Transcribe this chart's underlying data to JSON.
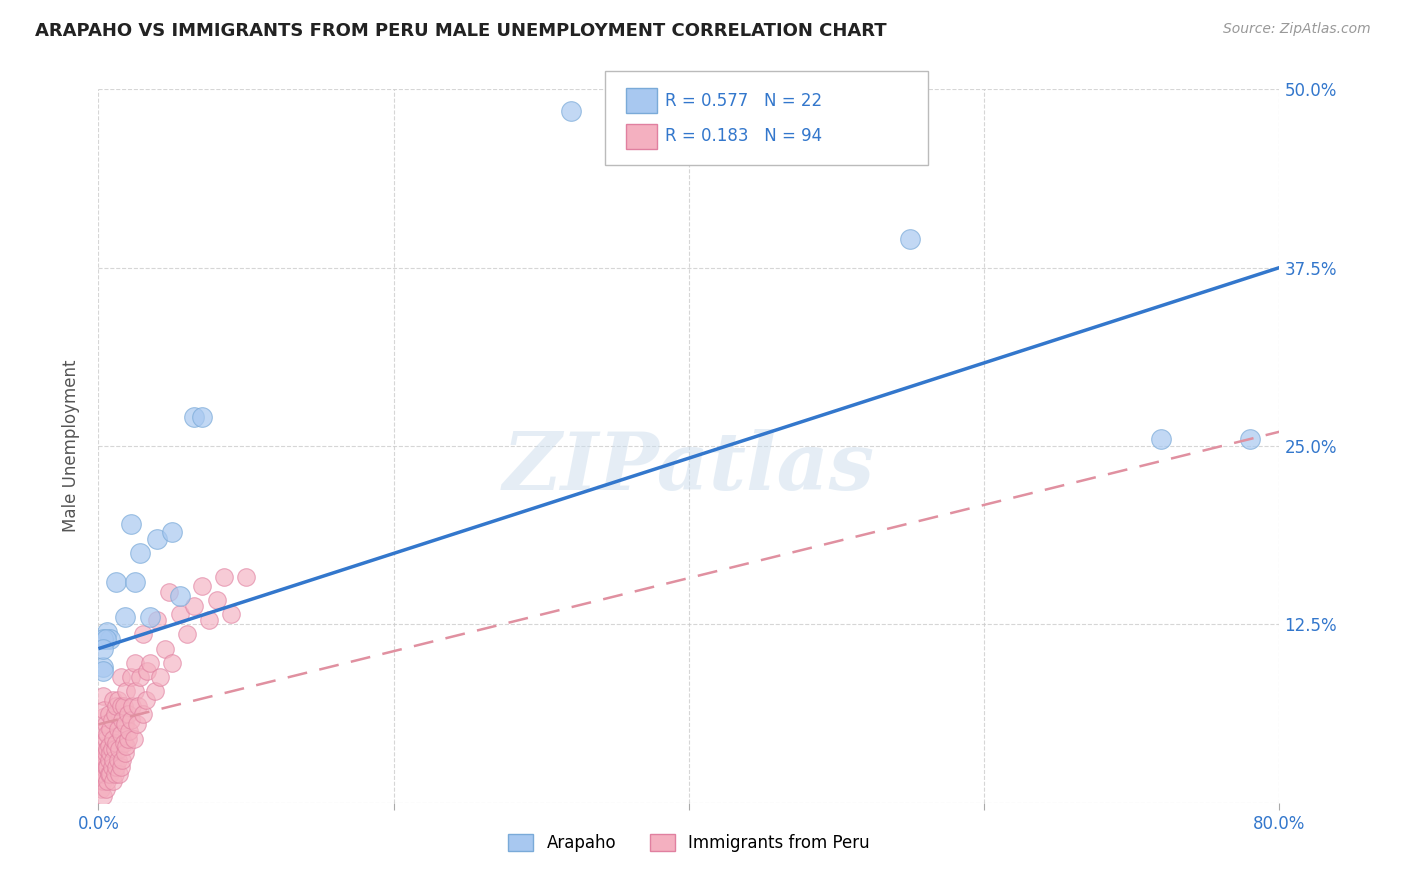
{
  "title": "ARAPAHO VS IMMIGRANTS FROM PERU MALE UNEMPLOYMENT CORRELATION CHART",
  "source": "Source: ZipAtlas.com",
  "ylabel": "Male Unemployment",
  "xlim": [
    0.0,
    0.8
  ],
  "ylim": [
    0.0,
    0.5
  ],
  "watermark": "ZIPatlas",
  "arapaho_color": "#a8c8f0",
  "arapaho_edge_color": "#7aaad8",
  "peru_color": "#f4b0c0",
  "peru_edge_color": "#e080a0",
  "arapaho_line_color": "#3377cc",
  "peru_line_color": "#e090a0",
  "arapaho_line": {
    "x0": 0.0,
    "y0": 0.108,
    "x1": 0.8,
    "y1": 0.375
  },
  "peru_line": {
    "x0": 0.0,
    "y0": 0.055,
    "x1": 0.8,
    "y1": 0.26
  },
  "arapaho_points": [
    [
      0.003,
      0.095
    ],
    [
      0.006,
      0.12
    ],
    [
      0.008,
      0.115
    ],
    [
      0.012,
      0.155
    ],
    [
      0.018,
      0.13
    ],
    [
      0.022,
      0.195
    ],
    [
      0.025,
      0.155
    ],
    [
      0.028,
      0.175
    ],
    [
      0.035,
      0.13
    ],
    [
      0.04,
      0.185
    ],
    [
      0.05,
      0.19
    ],
    [
      0.055,
      0.145
    ],
    [
      0.065,
      0.27
    ],
    [
      0.07,
      0.27
    ],
    [
      0.003,
      0.115
    ],
    [
      0.005,
      0.115
    ],
    [
      0.32,
      0.485
    ],
    [
      0.55,
      0.395
    ],
    [
      0.72,
      0.255
    ],
    [
      0.78,
      0.255
    ],
    [
      0.003,
      0.108
    ],
    [
      0.003,
      0.092
    ]
  ],
  "peru_points": [
    [
      0.0,
      0.02
    ],
    [
      0.001,
      0.015
    ],
    [
      0.001,
      0.025
    ],
    [
      0.001,
      0.035
    ],
    [
      0.002,
      0.01
    ],
    [
      0.002,
      0.02
    ],
    [
      0.002,
      0.03
    ],
    [
      0.002,
      0.04
    ],
    [
      0.003,
      0.005
    ],
    [
      0.003,
      0.015
    ],
    [
      0.003,
      0.025
    ],
    [
      0.003,
      0.06
    ],
    [
      0.003,
      0.075
    ],
    [
      0.004,
      0.02
    ],
    [
      0.004,
      0.03
    ],
    [
      0.004,
      0.05
    ],
    [
      0.004,
      0.065
    ],
    [
      0.005,
      0.01
    ],
    [
      0.005,
      0.025
    ],
    [
      0.005,
      0.035
    ],
    [
      0.005,
      0.045
    ],
    [
      0.005,
      0.055
    ],
    [
      0.006,
      0.015
    ],
    [
      0.006,
      0.025
    ],
    [
      0.006,
      0.038
    ],
    [
      0.006,
      0.048
    ],
    [
      0.007,
      0.02
    ],
    [
      0.007,
      0.03
    ],
    [
      0.007,
      0.04
    ],
    [
      0.007,
      0.062
    ],
    [
      0.008,
      0.02
    ],
    [
      0.008,
      0.035
    ],
    [
      0.008,
      0.052
    ],
    [
      0.009,
      0.025
    ],
    [
      0.009,
      0.038
    ],
    [
      0.009,
      0.058
    ],
    [
      0.01,
      0.015
    ],
    [
      0.01,
      0.03
    ],
    [
      0.01,
      0.045
    ],
    [
      0.01,
      0.072
    ],
    [
      0.011,
      0.02
    ],
    [
      0.011,
      0.038
    ],
    [
      0.011,
      0.062
    ],
    [
      0.012,
      0.025
    ],
    [
      0.012,
      0.042
    ],
    [
      0.012,
      0.068
    ],
    [
      0.013,
      0.03
    ],
    [
      0.013,
      0.052
    ],
    [
      0.013,
      0.072
    ],
    [
      0.014,
      0.02
    ],
    [
      0.014,
      0.038
    ],
    [
      0.015,
      0.025
    ],
    [
      0.015,
      0.048
    ],
    [
      0.015,
      0.068
    ],
    [
      0.015,
      0.088
    ],
    [
      0.016,
      0.03
    ],
    [
      0.016,
      0.058
    ],
    [
      0.017,
      0.042
    ],
    [
      0.017,
      0.068
    ],
    [
      0.018,
      0.035
    ],
    [
      0.018,
      0.055
    ],
    [
      0.019,
      0.04
    ],
    [
      0.019,
      0.078
    ],
    [
      0.02,
      0.045
    ],
    [
      0.02,
      0.062
    ],
    [
      0.021,
      0.05
    ],
    [
      0.022,
      0.058
    ],
    [
      0.022,
      0.088
    ],
    [
      0.023,
      0.068
    ],
    [
      0.024,
      0.045
    ],
    [
      0.025,
      0.078
    ],
    [
      0.025,
      0.098
    ],
    [
      0.026,
      0.055
    ],
    [
      0.027,
      0.068
    ],
    [
      0.028,
      0.088
    ],
    [
      0.03,
      0.062
    ],
    [
      0.03,
      0.118
    ],
    [
      0.032,
      0.072
    ],
    [
      0.033,
      0.092
    ],
    [
      0.035,
      0.098
    ],
    [
      0.038,
      0.078
    ],
    [
      0.04,
      0.128
    ],
    [
      0.042,
      0.088
    ],
    [
      0.045,
      0.108
    ],
    [
      0.048,
      0.148
    ],
    [
      0.05,
      0.098
    ],
    [
      0.055,
      0.132
    ],
    [
      0.06,
      0.118
    ],
    [
      0.065,
      0.138
    ],
    [
      0.07,
      0.152
    ],
    [
      0.075,
      0.128
    ],
    [
      0.08,
      0.142
    ],
    [
      0.085,
      0.158
    ],
    [
      0.09,
      0.132
    ],
    [
      0.1,
      0.158
    ]
  ]
}
